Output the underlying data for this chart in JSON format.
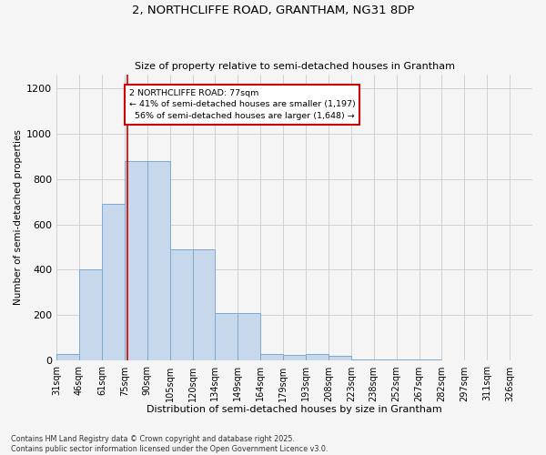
{
  "title1": "2, NORTHCLIFFE ROAD, GRANTHAM, NG31 8DP",
  "title2": "Size of property relative to semi-detached houses in Grantham",
  "xlabel": "Distribution of semi-detached houses by size in Grantham",
  "ylabel": "Number of semi-detached properties",
  "bins": [
    "31sqm",
    "46sqm",
    "61sqm",
    "75sqm",
    "90sqm",
    "105sqm",
    "120sqm",
    "134sqm",
    "149sqm",
    "164sqm",
    "179sqm",
    "193sqm",
    "208sqm",
    "223sqm",
    "238sqm",
    "252sqm",
    "267sqm",
    "282sqm",
    "297sqm",
    "311sqm",
    "326sqm"
  ],
  "bin_edges": [
    0,
    1,
    2,
    3,
    4,
    5,
    6,
    7,
    8,
    9,
    10,
    11,
    12,
    13,
    14,
    15,
    16,
    17,
    18,
    19,
    20,
    21
  ],
  "values": [
    30,
    400,
    690,
    880,
    880,
    490,
    490,
    210,
    210,
    30,
    25,
    30,
    20,
    5,
    5,
    5,
    5,
    2,
    2,
    2,
    2
  ],
  "property_size": 3.13,
  "percent_smaller": 41,
  "percent_larger": 56,
  "count_smaller": 1197,
  "count_larger": 1648,
  "bar_color": "#c8d8ec",
  "bar_edge_color": "#7aaace",
  "annotation_box_color": "#cc0000",
  "vline_color": "#cc0000",
  "background_color": "#f5f5f5",
  "grid_color": "#cccccc",
  "footnote": "Contains HM Land Registry data © Crown copyright and database right 2025.\nContains public sector information licensed under the Open Government Licence v3.0.",
  "ylim": [
    0,
    1260
  ],
  "yticks": [
    0,
    200,
    400,
    600,
    800,
    1000,
    1200
  ]
}
